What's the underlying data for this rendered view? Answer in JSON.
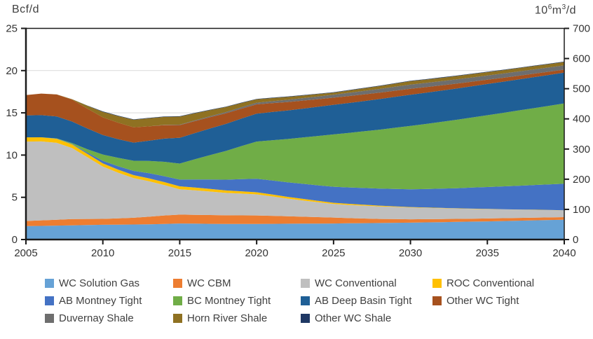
{
  "units": {
    "left": "Bcf/d",
    "right_parts": {
      "b1": "10",
      "s1": "6",
      "b2": "m",
      "s2": "3",
      "b3": "/d"
    },
    "right_full": "10⁶m³/d"
  },
  "chart_data": {
    "type": "area",
    "stacked": true,
    "title": "",
    "xlabel": "",
    "ylabel_left": "Bcf/d",
    "ylabel_right": "10⁶m³/d",
    "x_range": [
      2005,
      2040
    ],
    "x_ticks": [
      "2005",
      "2010",
      "2015",
      "2020",
      "2025",
      "2030",
      "2035",
      "2040"
    ],
    "y_left_ticks": [
      "0",
      "5",
      "10",
      "15",
      "20",
      "25"
    ],
    "y_left_range": [
      0,
      25
    ],
    "y_right_ticks": [
      "0",
      "100",
      "200",
      "300",
      "400",
      "500",
      "600",
      "700"
    ],
    "y_right_range": [
      0,
      700
    ],
    "grid": "horizontal-light",
    "legend_position": "bottom",
    "x": [
      2005,
      2006,
      2007,
      2008,
      2009,
      2010,
      2011,
      2012,
      2013,
      2014,
      2015,
      2016,
      2017,
      2018,
      2019,
      2020,
      2021,
      2022,
      2023,
      2024,
      2025,
      2026,
      2027,
      2028,
      2029,
      2030,
      2031,
      2032,
      2033,
      2034,
      2035,
      2036,
      2037,
      2038,
      2039,
      2040
    ],
    "series": [
      {
        "name": "WC Solution Gas",
        "color": "#66A2D6",
        "values": [
          1.6,
          1.62,
          1.65,
          1.68,
          1.72,
          1.75,
          1.76,
          1.78,
          1.8,
          1.85,
          1.9,
          1.88,
          1.86,
          1.85,
          1.85,
          1.85,
          1.86,
          1.87,
          1.88,
          1.89,
          1.9,
          1.92,
          1.94,
          1.96,
          1.98,
          2.0,
          2.03,
          2.06,
          2.09,
          2.12,
          2.15,
          2.19,
          2.23,
          2.27,
          2.31,
          2.35
        ]
      },
      {
        "name": "WC CBM",
        "color": "#ED7D31",
        "values": [
          0.6,
          0.65,
          0.7,
          0.75,
          0.72,
          0.7,
          0.75,
          0.8,
          0.9,
          1.0,
          1.05,
          1.05,
          1.04,
          1.02,
          1.01,
          1.0,
          0.95,
          0.88,
          0.82,
          0.76,
          0.7,
          0.62,
          0.55,
          0.48,
          0.44,
          0.4,
          0.38,
          0.37,
          0.36,
          0.35,
          0.35,
          0.34,
          0.33,
          0.32,
          0.31,
          0.3
        ]
      },
      {
        "name": "WC Conventional",
        "color": "#BFBFBF",
        "values": [
          9.4,
          9.35,
          9.1,
          8.4,
          7.3,
          6.2,
          5.4,
          4.7,
          4.2,
          3.6,
          3.0,
          2.9,
          2.78,
          2.65,
          2.58,
          2.5,
          2.3,
          2.1,
          1.93,
          1.76,
          1.6,
          1.56,
          1.52,
          1.48,
          1.44,
          1.4,
          1.34,
          1.28,
          1.22,
          1.16,
          1.1,
          1.04,
          0.98,
          0.92,
          0.86,
          0.8
        ]
      },
      {
        "name": "ROC Conventional",
        "color": "#FFC000",
        "values": [
          0.5,
          0.49,
          0.47,
          0.44,
          0.4,
          0.37,
          0.36,
          0.35,
          0.35,
          0.35,
          0.35,
          0.33,
          0.31,
          0.29,
          0.27,
          0.25,
          0.23,
          0.21,
          0.19,
          0.17,
          0.15,
          0.13,
          0.11,
          0.09,
          0.07,
          0.05,
          0.04,
          0.04,
          0.03,
          0.03,
          0.02,
          0.02,
          0.02,
          0.02,
          0.02,
          0.02
        ]
      },
      {
        "name": "AB Montney Tight",
        "color": "#4472C4",
        "values": [
          0.0,
          0.0,
          0.02,
          0.05,
          0.15,
          0.3,
          0.4,
          0.5,
          0.6,
          0.7,
          0.8,
          0.95,
          1.12,
          1.28,
          1.45,
          1.6,
          1.66,
          1.72,
          1.78,
          1.84,
          1.9,
          1.94,
          1.98,
          2.02,
          2.06,
          2.1,
          2.19,
          2.28,
          2.38,
          2.49,
          2.6,
          2.7,
          2.81,
          2.92,
          3.03,
          3.15
        ]
      },
      {
        "name": "BC Montney Tight",
        "color": "#70AD47",
        "values": [
          0.0,
          0.0,
          0.03,
          0.1,
          0.4,
          0.75,
          1.0,
          1.2,
          1.45,
          1.7,
          1.9,
          2.4,
          2.9,
          3.4,
          3.9,
          4.4,
          4.76,
          5.12,
          5.48,
          5.84,
          6.2,
          6.46,
          6.72,
          6.98,
          7.24,
          7.5,
          7.7,
          7.9,
          8.1,
          8.3,
          8.5,
          8.7,
          8.9,
          9.1,
          9.3,
          9.5
        ]
      },
      {
        "name": "AB Deep Basin Tight",
        "color": "#1F5F96",
        "values": [
          2.6,
          2.62,
          2.6,
          2.55,
          2.45,
          2.3,
          2.2,
          2.15,
          2.4,
          2.75,
          3.05,
          3.1,
          3.15,
          3.2,
          3.25,
          3.3,
          3.34,
          3.38,
          3.42,
          3.46,
          3.5,
          3.54,
          3.58,
          3.62,
          3.66,
          3.7,
          3.7,
          3.7,
          3.7,
          3.7,
          3.7,
          3.69,
          3.68,
          3.67,
          3.66,
          3.65
        ]
      },
      {
        "name": "Other WC Tight",
        "color": "#A6511E",
        "values": [
          2.4,
          2.55,
          2.6,
          2.6,
          2.35,
          2.1,
          1.95,
          1.8,
          1.7,
          1.6,
          1.5,
          1.42,
          1.34,
          1.26,
          1.18,
          1.1,
          1.05,
          1.0,
          0.95,
          0.9,
          0.85,
          0.82,
          0.79,
          0.76,
          0.73,
          0.7,
          0.66,
          0.62,
          0.58,
          0.54,
          0.5,
          0.47,
          0.44,
          0.41,
          0.38,
          0.35
        ]
      },
      {
        "name": "Duvernay Shale",
        "color": "#6E6E6E",
        "values": [
          0.0,
          0.0,
          0.0,
          0.0,
          0.0,
          0.0,
          0.0,
          0.0,
          0.0,
          0.02,
          0.05,
          0.08,
          0.11,
          0.14,
          0.17,
          0.2,
          0.23,
          0.26,
          0.29,
          0.32,
          0.35,
          0.38,
          0.41,
          0.44,
          0.47,
          0.5,
          0.5,
          0.5,
          0.5,
          0.5,
          0.5,
          0.5,
          0.5,
          0.5,
          0.5,
          0.5
        ]
      },
      {
        "name": "Horn River Shale",
        "color": "#8F7122",
        "values": [
          0.0,
          0.0,
          0.02,
          0.05,
          0.35,
          0.65,
          0.8,
          0.9,
          0.95,
          0.95,
          0.95,
          0.85,
          0.72,
          0.6,
          0.5,
          0.4,
          0.37,
          0.34,
          0.31,
          0.28,
          0.25,
          0.28,
          0.31,
          0.34,
          0.37,
          0.4,
          0.4,
          0.4,
          0.4,
          0.4,
          0.4,
          0.4,
          0.4,
          0.4,
          0.4,
          0.4
        ]
      },
      {
        "name": "Other WC Shale",
        "color": "#1F3864",
        "values": [
          0.0,
          0.0,
          0.0,
          0.0,
          0.02,
          0.05,
          0.05,
          0.05,
          0.05,
          0.05,
          0.05,
          0.05,
          0.05,
          0.05,
          0.05,
          0.05,
          0.05,
          0.05,
          0.05,
          0.05,
          0.05,
          0.05,
          0.05,
          0.05,
          0.05,
          0.05,
          0.05,
          0.05,
          0.05,
          0.05,
          0.05,
          0.05,
          0.05,
          0.05,
          0.05,
          0.05
        ]
      }
    ]
  },
  "style_colors": {
    "grid": "#D9D9D9",
    "axis": "#1A1A1A",
    "tick_text": "#333333",
    "legend_text": "#404040"
  }
}
